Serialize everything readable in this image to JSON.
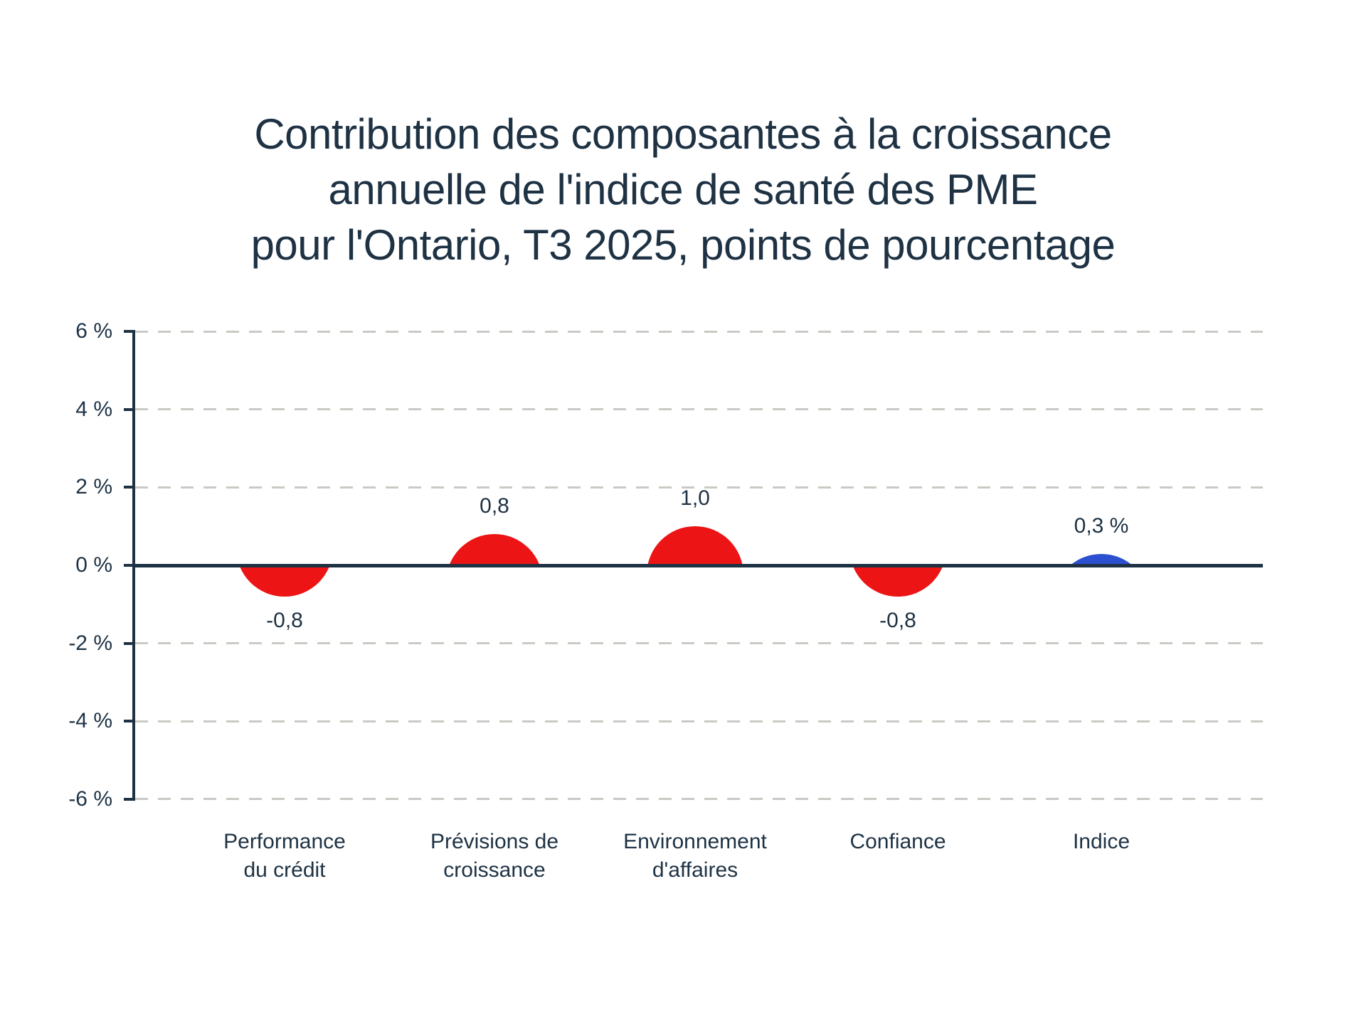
{
  "title": {
    "lines": [
      "Contribution des composantes à la croissance",
      "annuelle de l'indice de santé des PME",
      "pour l'Ontario, T3 2025, points de pourcentage"
    ]
  },
  "chart_data": {
    "type": "bar",
    "mark": "semicircle-bubble",
    "categories": [
      "Performance du crédit",
      "Prévisions de croissance",
      "Environnement d'affaires",
      "Confiance",
      "Indice"
    ],
    "category_label_lines": [
      [
        "Performance",
        "du crédit"
      ],
      [
        "Prévisions de",
        "croissance"
      ],
      [
        "Environnement",
        "d'affaires"
      ],
      [
        "Confiance"
      ],
      [
        "Indice"
      ]
    ],
    "values": [
      -0.8,
      0.8,
      1.0,
      -0.8,
      0.3
    ],
    "value_labels": [
      "-0,8",
      "0,8",
      "1,0",
      "-0,8",
      "0,3 %"
    ],
    "point_colors": [
      "#ec1414",
      "#ec1414",
      "#ec1414",
      "#ec1414",
      "#2d50d0"
    ],
    "xlabel": "",
    "ylabel": "",
    "ylim": [
      -6,
      6
    ],
    "yticks": {
      "values": [
        6,
        4,
        2,
        0,
        -2,
        -4,
        -6
      ],
      "labels": [
        "6 %",
        "4 %",
        "2 %",
        "0 %",
        "-2 %",
        "-4 %",
        "-6 %"
      ]
    },
    "grid": "dashed-horizontal",
    "legend": "none"
  },
  "colors": {
    "background": "#ffffff",
    "text": "#1e3244",
    "axis": "#1e3244",
    "gridline": "#cbc9c4",
    "component_bubble": "#ec1414",
    "index_bubble": "#2d50d0"
  }
}
